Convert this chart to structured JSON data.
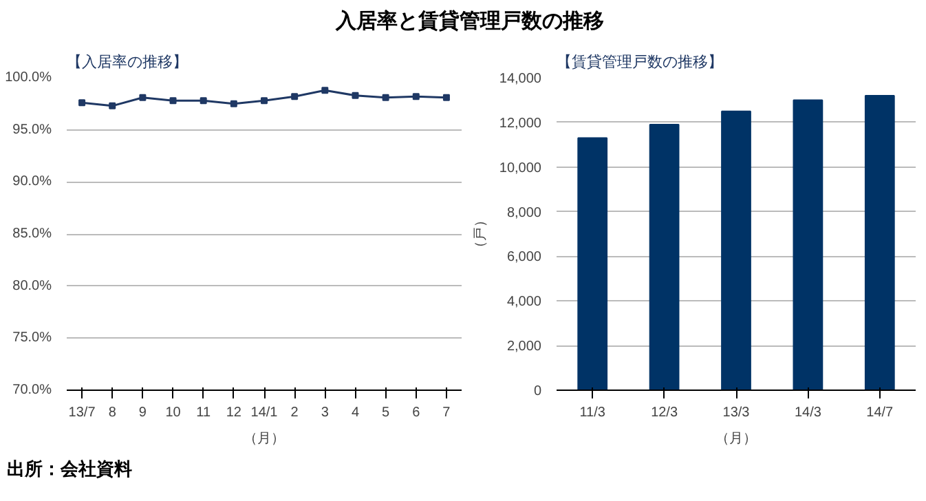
{
  "chart_data": [
    {
      "type": "line",
      "title": "入居率と賃貸管理戸数の推移",
      "subtitle": "【入居率の推移】",
      "xlabel": "（月）",
      "categories": [
        "13/7",
        "8",
        "9",
        "10",
        "11",
        "12",
        "14/1",
        "2",
        "3",
        "4",
        "5",
        "6",
        "7"
      ],
      "series": [
        {
          "color": "#1f3864",
          "values": [
            97.6,
            97.3,
            98.1,
            97.8,
            97.8,
            97.5,
            97.8,
            98.2,
            98.8,
            98.3,
            98.1,
            98.2,
            98.1
          ]
        }
      ],
      "ylim": [
        70,
        100
      ],
      "yticks": [
        {
          "value": 70,
          "label": "70.0%"
        },
        {
          "value": 75,
          "label": "75.0%"
        },
        {
          "value": 80,
          "label": "80.0%"
        },
        {
          "value": 85,
          "label": "85.0%"
        },
        {
          "value": 90,
          "label": "90.0%"
        },
        {
          "value": 95,
          "label": "95.0%"
        },
        {
          "value": 100,
          "label": "100.0%"
        }
      ],
      "grid": "y",
      "marker": "square",
      "line_style": "solid",
      "annotations": [
        "出所：会社資料"
      ]
    },
    {
      "type": "bar",
      "subtitle": "【賃貸管理戸数の推移】",
      "xlabel": "（月）",
      "ylabel": "（戸）",
      "categories": [
        "11/3",
        "12/3",
        "13/3",
        "14/3",
        "14/7"
      ],
      "series": [
        {
          "color": "#003366",
          "values": [
            11300,
            11900,
            12500,
            13000,
            13200
          ]
        }
      ],
      "ylim": [
        0,
        14000
      ],
      "yticks": [
        0,
        {
          "value": 2000,
          "label": "2,000"
        },
        {
          "value": 4000,
          "label": "4,000"
        },
        {
          "value": 6000,
          "label": "6,000"
        },
        {
          "value": 8000,
          "label": "8,000"
        },
        {
          "value": 10000,
          "label": "10,000"
        },
        {
          "value": 12000,
          "label": "12,000"
        },
        {
          "value": 14000,
          "label": "14,000"
        }
      ],
      "grid": "y"
    }
  ]
}
